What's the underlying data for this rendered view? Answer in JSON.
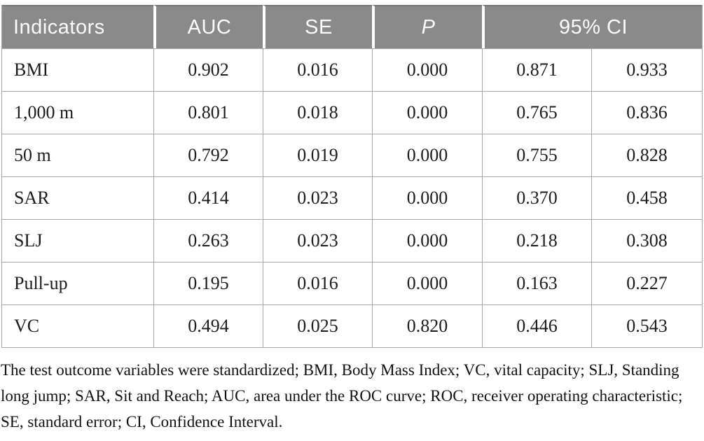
{
  "table": {
    "header": {
      "indicators": "Indicators",
      "auc": "AUC",
      "se": "SE",
      "p": "P",
      "ci": "95% CI"
    },
    "rows": [
      {
        "indicator": "BMI",
        "auc": "0.902",
        "se": "0.016",
        "p": "0.000",
        "ci_low": "0.871",
        "ci_high": "0.933"
      },
      {
        "indicator": "1,000 m",
        "auc": "0.801",
        "se": "0.018",
        "p": "0.000",
        "ci_low": "0.765",
        "ci_high": "0.836"
      },
      {
        "indicator": "50 m",
        "auc": "0.792",
        "se": "0.019",
        "p": "0.000",
        "ci_low": "0.755",
        "ci_high": "0.828"
      },
      {
        "indicator": "SAR",
        "auc": "0.414",
        "se": "0.023",
        "p": "0.000",
        "ci_low": "0.370",
        "ci_high": "0.458"
      },
      {
        "indicator": "SLJ",
        "auc": "0.263",
        "se": "0.023",
        "p": "0.000",
        "ci_low": "0.218",
        "ci_high": "0.308"
      },
      {
        "indicator": "Pull-up",
        "auc": "0.195",
        "se": "0.016",
        "p": "0.000",
        "ci_low": "0.163",
        "ci_high": "0.227"
      },
      {
        "indicator": "VC",
        "auc": "0.494",
        "se": "0.025",
        "p": "0.820",
        "ci_low": "0.446",
        "ci_high": "0.543"
      }
    ]
  },
  "footnote": "The test outcome variables were standardized; BMI, Body Mass Index; VC, vital capacity; SLJ, Standing long jump; SAR, Sit and Reach; AUC, area under the ROC curve; ROC, receiver operating characteristic; SE, standard error; CI, Confidence Interval.",
  "colors": {
    "header_bg": "#8a8a8a",
    "header_text": "#fbfbfb",
    "body_text": "#1c1c1c",
    "border": "#a6a6a6"
  }
}
